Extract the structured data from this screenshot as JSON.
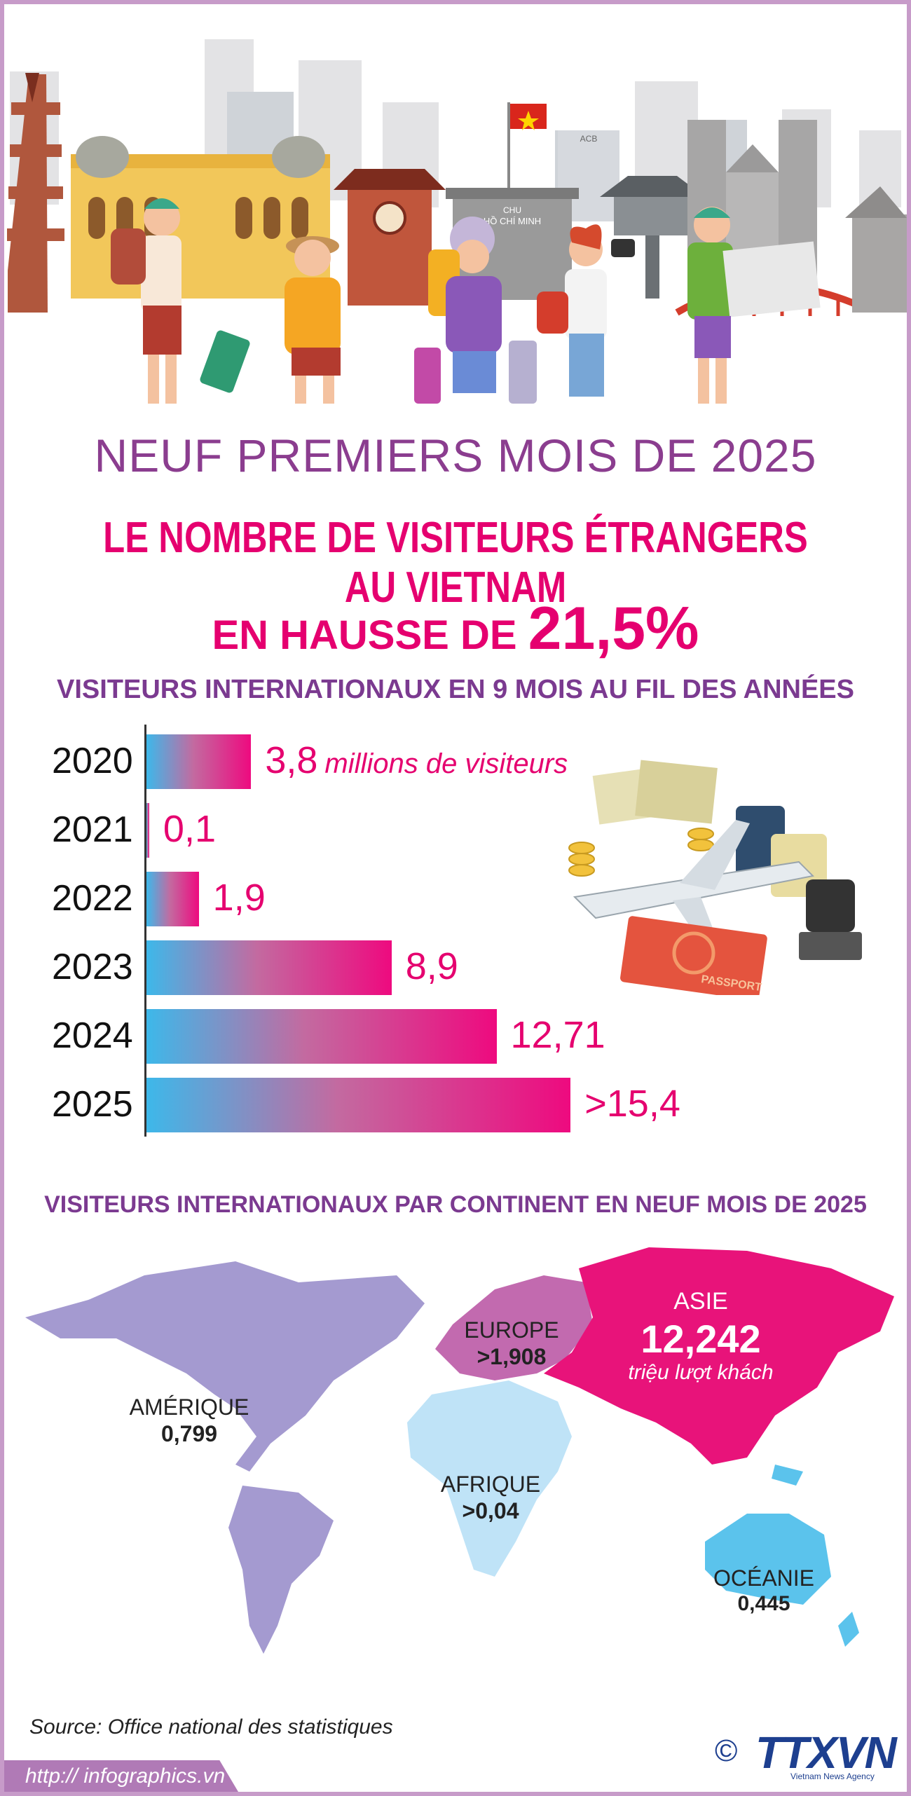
{
  "header": {
    "overline": "NEUF PREMIERS MOIS DE 2025",
    "headline_line1": "LE NOMBRE DE VISITEURS ÉTRANGERS AU VIETNAM",
    "headline_line2_prefix": "EN HAUSSE DE",
    "headline_line2_value": "21,5%",
    "sign_text_small": "CHU",
    "sign_text_main": "HỒ CHÍ MINH",
    "building_sign": "ACB",
    "flag_color": "#d9261c"
  },
  "chart_data": [
    {
      "type": "bar",
      "orientation": "horizontal",
      "title": "VISITEURS INTERNATIONAUX EN 9 MOIS AU FIL DES ANNÉES",
      "unit": "millions de visiteurs",
      "categories": [
        "2020",
        "2021",
        "2022",
        "2023",
        "2024",
        "2025"
      ],
      "values": [
        3.8,
        0.1,
        1.9,
        8.9,
        12.71,
        15.4
      ],
      "labels": [
        "3,8",
        "0,1",
        "1,9",
        "8,9",
        "12,71",
        ">15,4"
      ],
      "colors": {
        "start": "#3db8ea",
        "end": "#ee0a7f",
        "label": "#e5006f"
      }
    },
    {
      "type": "map",
      "title": "VISITEURS INTERNATIONAUX PAR CONTINENT EN NEUF MOIS DE 2025",
      "regions": [
        {
          "name": "ASIE",
          "value": "12,242",
          "sub": "triệu lượt khách",
          "color": "#e8137a"
        },
        {
          "name": "EUROPE",
          "value": ">1,908",
          "color": "#c26aaf"
        },
        {
          "name": "AMÉRIQUE",
          "value": "0,799",
          "color": "#a49ad0"
        },
        {
          "name": "AFRIQUE",
          "value": ">0,04",
          "color": "#bfe3f7"
        },
        {
          "name": "OCÉANIE",
          "value": "0,445",
          "color": "#5bc3ec"
        }
      ]
    }
  ],
  "illustration": {
    "passport_label": "PASSPORT"
  },
  "footer": {
    "source": "Source: Office national des statistiques",
    "url": "http:// infographics.vn",
    "copyright_symbol": "©",
    "logo": "TTXVN",
    "logo_sub": "Vietnam News Agency"
  }
}
